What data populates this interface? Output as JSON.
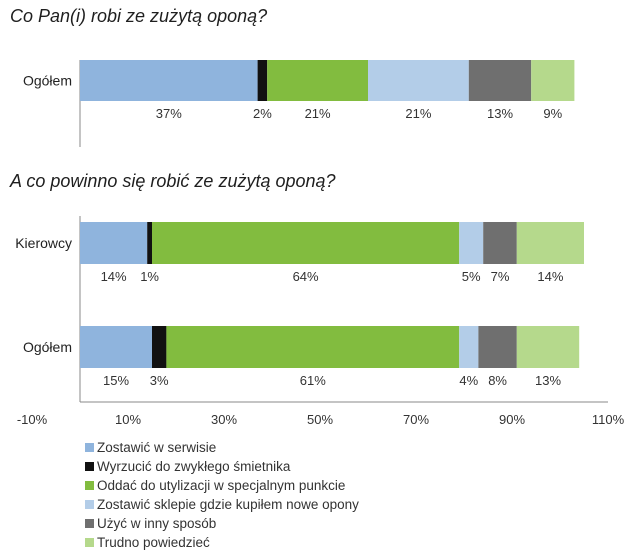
{
  "chart_data": [
    {
      "type": "bar",
      "orientation": "horizontal",
      "stacked": true,
      "title": "Co Pan(i) robi ze zużytą oponą?",
      "categories": [
        "Ogółem"
      ],
      "series": [
        {
          "name": "Zostawić w serwisie",
          "values": [
            37
          ],
          "labels": [
            "37%"
          ]
        },
        {
          "name": "Wyrzucić do zwykłego śmietnika",
          "values": [
            2
          ],
          "labels": [
            "2%"
          ]
        },
        {
          "name": "Oddać do utylizacji w specjalnym punkcie",
          "values": [
            21
          ],
          "labels": [
            "21%"
          ]
        },
        {
          "name": "Zostawić sklepie gdzie kupiłem nowe opony",
          "values": [
            21
          ],
          "labels": [
            "21%"
          ]
        },
        {
          "name": "Użyć w inny sposób",
          "values": [
            13
          ],
          "labels": [
            "13%"
          ]
        },
        {
          "name": "Trudno powiedzieć",
          "values": [
            9
          ],
          "labels": [
            "9%"
          ]
        }
      ]
    },
    {
      "type": "bar",
      "orientation": "horizontal",
      "stacked": true,
      "title": "A co powinno się robić ze zużytą oponą?",
      "categories": [
        "Kierowcy",
        "Ogółem"
      ],
      "series": [
        {
          "name": "Zostawić w serwisie",
          "values": [
            14,
            15
          ],
          "labels": [
            "14%",
            "15%"
          ]
        },
        {
          "name": "Wyrzucić do zwykłego śmietnika",
          "values": [
            1,
            3
          ],
          "labels": [
            "1%",
            "3%"
          ]
        },
        {
          "name": "Oddać do utylizacji w specjalnym punkcie",
          "values": [
            64,
            61
          ],
          "labels": [
            "64%",
            "61%"
          ]
        },
        {
          "name": "Zostawić sklepie gdzie kupiłem nowe opony",
          "values": [
            5,
            4
          ],
          "labels": [
            "5%",
            "4%"
          ]
        },
        {
          "name": "Użyć w inny sposób",
          "values": [
            7,
            8
          ],
          "labels": [
            "7%",
            "8%"
          ]
        },
        {
          "name": "Trudno powiedzieć",
          "values": [
            14,
            13
          ],
          "labels": [
            "14%",
            "13%"
          ]
        }
      ],
      "xlim": [
        -10,
        110
      ],
      "xticks": [
        "-10%",
        "10%",
        "30%",
        "50%",
        "70%",
        "90%",
        "110%"
      ]
    }
  ],
  "colors": [
    "#8fb4dd",
    "#111111",
    "#82bc3f",
    "#b3cde8",
    "#6f6f6f",
    "#b5d98c"
  ],
  "legend": [
    "Zostawić w serwisie",
    "Wyrzucić do zwykłego śmietnika",
    "Oddać do utylizacji w specjalnym punkcie",
    "Zostawić sklepie gdzie kupiłem nowe opony",
    "Użyć w inny sposób",
    "Trudno powiedzieć"
  ]
}
